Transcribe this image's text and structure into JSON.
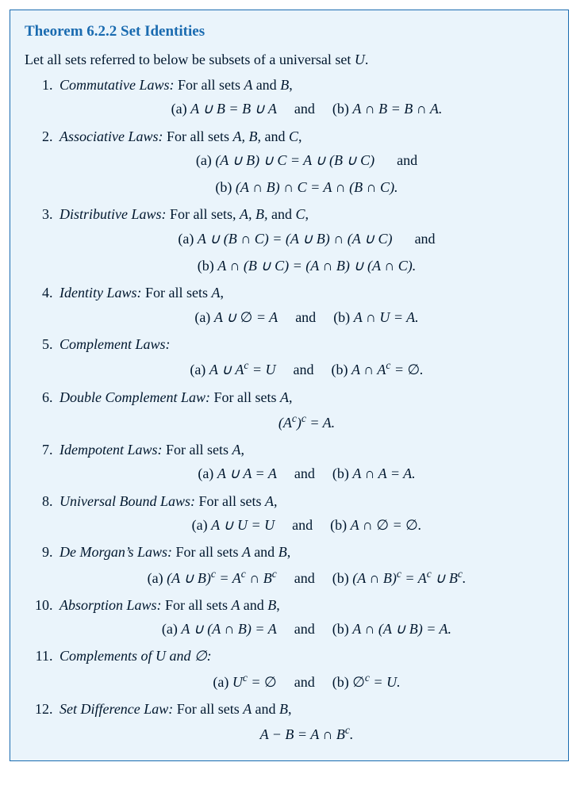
{
  "colors": {
    "box_border": "#1a6bb0",
    "box_background": "#eaf4fb",
    "title_color": "#1a6bb0",
    "text_color": "#00172e"
  },
  "typography": {
    "body_font": "Times New Roman",
    "body_size_pt": 14,
    "title_size_pt": 14,
    "title_weight": "bold"
  },
  "theorem": {
    "title": "Theorem 6.2.2 Set Identities",
    "intro_prefix": "Let all sets referred to below be subsets of a universal set ",
    "intro_var": "U",
    "intro_suffix": ".",
    "and_word": "and",
    "items": [
      {
        "name": "Commutative Laws:",
        "desc_prefix": " For all sets ",
        "desc_vars": "A and B",
        "desc_suffix": ",",
        "lines": [
          {
            "a_label": "(a) ",
            "a_expr": "A ∪ B = B ∪ A",
            "and": true,
            "b_label": "(b) ",
            "b_expr": "A ∩ B = B ∩ A."
          }
        ]
      },
      {
        "name": "Associative Laws:",
        "desc_prefix": " For all sets ",
        "desc_vars": "A, B, and C",
        "desc_suffix": ",",
        "lines": [
          {
            "a_label": "(a) ",
            "a_expr": "(A ∪ B) ∪ C = A ∪ (B ∪ C)",
            "and_after": true
          },
          {
            "b_label": "(b) ",
            "b_expr": "(A ∩ B) ∩ C = A ∩ (B ∩ C)."
          }
        ]
      },
      {
        "name": "Distributive Laws:",
        "desc_prefix": " For all sets, ",
        "desc_vars": "A, B, and C",
        "desc_suffix": ",",
        "lines": [
          {
            "a_label": "(a) ",
            "a_expr": "A ∪ (B ∩ C) = (A ∪ B) ∩ (A ∪ C)",
            "and_after": true
          },
          {
            "b_label": "(b) ",
            "b_expr": "A ∩ (B ∪ C) = (A ∩ B) ∪ (A ∩ C)."
          }
        ]
      },
      {
        "name": "Identity Laws:",
        "desc_prefix": " For all sets ",
        "desc_vars": "A",
        "desc_suffix": ",",
        "lines": [
          {
            "a_label": "(a) ",
            "a_expr": "A ∪ ∅ = A",
            "and": true,
            "b_label": "(b) ",
            "b_expr": "A ∩ U = A."
          }
        ]
      },
      {
        "name": "Complement Laws:",
        "desc_prefix": "",
        "desc_vars": "",
        "desc_suffix": "",
        "lines": [
          {
            "a_label": "(a) ",
            "a_expr_html": "A ∪ A<span class='sup'>c</span> = U",
            "and": true,
            "b_label": "(b) ",
            "b_expr_html": "A ∩ A<span class='sup'>c</span> = ∅."
          }
        ]
      },
      {
        "name": "Double Complement Law:",
        "desc_prefix": " For all sets ",
        "desc_vars": "A",
        "desc_suffix": ",",
        "lines": [
          {
            "center_expr_html": "(A<span class='sup'>c</span>)<span class='sup'>c</span> = A."
          }
        ]
      },
      {
        "name": "Idempotent Laws:",
        "desc_prefix": " For all sets ",
        "desc_vars": "A",
        "desc_suffix": ",",
        "lines": [
          {
            "a_label": "(a) ",
            "a_expr": "A ∪ A = A",
            "and": true,
            "b_label": "(b) ",
            "b_expr": "A ∩ A = A."
          }
        ]
      },
      {
        "name": "Universal Bound Laws:",
        "desc_prefix": " For all sets ",
        "desc_vars": "A",
        "desc_suffix": ",",
        "lines": [
          {
            "a_label": "(a) ",
            "a_expr": "A ∪ U = U",
            "and": true,
            "b_label": "(b) ",
            "b_expr": "A ∩ ∅ = ∅."
          }
        ]
      },
      {
        "name": "De Morgan’s Laws:",
        "desc_prefix": " For all sets ",
        "desc_vars": "A and B",
        "desc_suffix": ",",
        "lines": [
          {
            "a_label": "(a) ",
            "a_expr_html": "(A ∪ B)<span class='sup'>c</span> = A<span class='sup'>c</span> ∩ B<span class='sup'>c</span>",
            "and": true,
            "b_label": "(b) ",
            "b_expr_html": "(A ∩ B)<span class='sup'>c</span> = A<span class='sup'>c</span> ∪ B<span class='sup'>c</span>."
          }
        ]
      },
      {
        "name": "Absorption Laws:",
        "desc_prefix": " For all sets ",
        "desc_vars": "A and B",
        "desc_suffix": ",",
        "lines": [
          {
            "a_label": "(a) ",
            "a_expr": "A ∪ (A ∩ B) = A",
            "and": true,
            "b_label": "(b) ",
            "b_expr": "A ∩ (A ∪ B) = A."
          }
        ]
      },
      {
        "name": "Complements of U and ∅:",
        "desc_prefix": "",
        "desc_vars": "",
        "desc_suffix": "",
        "lines": [
          {
            "a_label": "(a) ",
            "a_expr_html": "U<span class='sup'>c</span> = ∅",
            "and": true,
            "b_label": "(b) ",
            "b_expr_html": "∅<span class='sup'>c</span> = U."
          }
        ]
      },
      {
        "name": "Set Difference Law:",
        "desc_prefix": " For all sets ",
        "desc_vars": "A and B",
        "desc_suffix": ",",
        "lines": [
          {
            "center_expr_html": "A − B = A ∩ B<span class='sup'>c</span>."
          }
        ]
      }
    ]
  }
}
